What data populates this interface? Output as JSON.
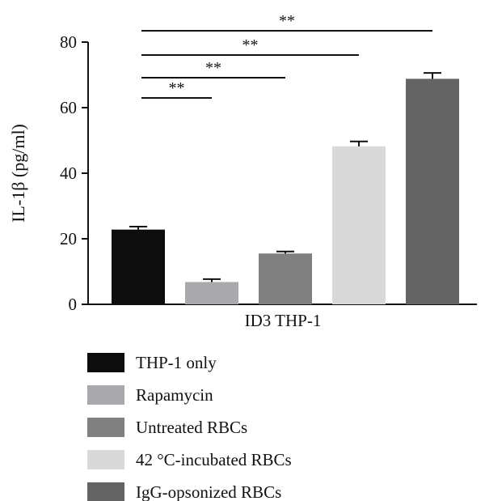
{
  "chart_data": {
    "type": "bar",
    "x_group_label": "ID3 THP-1",
    "ylabel": "IL-1β (pg/ml)",
    "ylim": [
      0,
      80
    ],
    "yticks": [
      0,
      20,
      40,
      60,
      80
    ],
    "categories": [
      "THP-1 only",
      "Rapamycin",
      "Untreated RBCs",
      "42 °C-incubated RBCs",
      "IgG-opsonized RBCs"
    ],
    "values": [
      22.8,
      6.8,
      15.5,
      48.2,
      68.8
    ],
    "errors": [
      0.9,
      0.9,
      0.6,
      1.5,
      1.8
    ],
    "colors": [
      "#0d0d0d",
      "#a8a8ad",
      "#808080",
      "#d9d9d9",
      "#646464"
    ],
    "significance": [
      {
        "from": 0,
        "to": 1,
        "label": "**"
      },
      {
        "from": 0,
        "to": 2,
        "label": "**"
      },
      {
        "from": 0,
        "to": 3,
        "label": "**"
      },
      {
        "from": 0,
        "to": 4,
        "label": "**"
      }
    ],
    "legend_position": "bottom",
    "grid": false
  }
}
